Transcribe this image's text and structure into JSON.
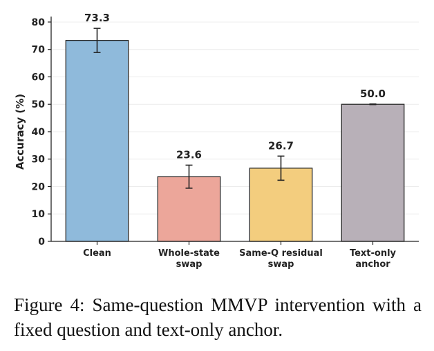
{
  "chart_data": {
    "type": "bar",
    "categories": [
      [
        "Clean"
      ],
      [
        "Whole-state",
        "swap"
      ],
      [
        "Same-Q residual",
        "swap"
      ],
      [
        "Text-only",
        "anchor"
      ]
    ],
    "values": [
      73.3,
      23.6,
      26.7,
      50.0
    ],
    "value_labels": [
      "73.3",
      "23.6",
      "26.7",
      "50.0"
    ],
    "error": [
      4.4,
      4.2,
      4.4,
      0.1
    ],
    "colors": [
      "#8fbadb",
      "#eca69a",
      "#f3cd7e",
      "#b8b0b8"
    ],
    "ylabel": "Accuracy (%)",
    "ylim": [
      0,
      82
    ],
    "yticks": [
      0,
      10,
      20,
      30,
      40,
      50,
      60,
      70,
      80
    ],
    "grid": true,
    "legend": "none"
  },
  "caption": "Figure 4:  Same-question MMVP intervention with a fixed question and text-only anchor."
}
